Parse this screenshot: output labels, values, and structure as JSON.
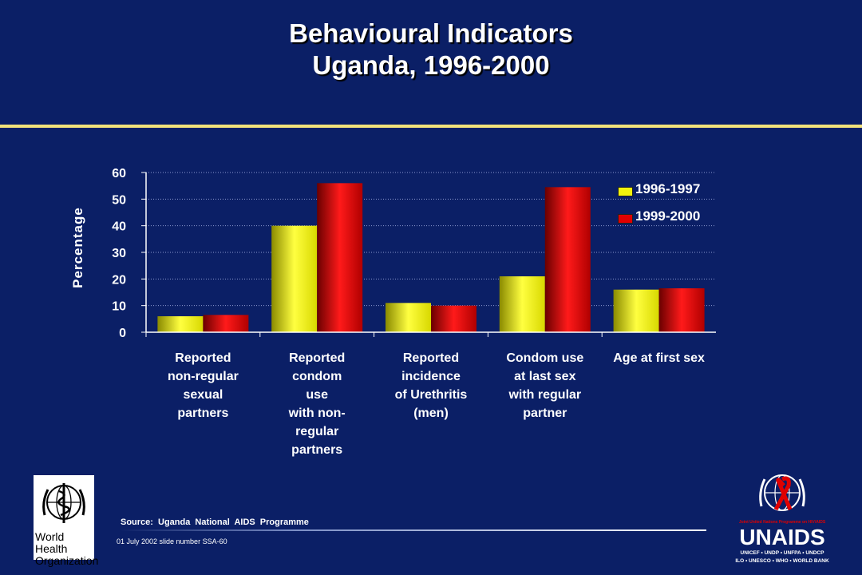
{
  "title_line1": "Behavioural Indicators",
  "title_line2": "Uganda, 1996-2000",
  "chart_data": {
    "type": "bar",
    "categories": [
      "Reported\nnon-regular\nsexual\npartners",
      "Reported\ncondom\nuse\nwith non-\nregular\npartners",
      "Reported\nincidence\nof Urethritis\n(men)",
      "Condom use\nat last sex\nwith regular\npartner",
      "Age at first sex"
    ],
    "series": [
      {
        "name": "1996-1997",
        "values": [
          6,
          40,
          11,
          21,
          16
        ],
        "color": "#f2f20c"
      },
      {
        "name": "1999-2000",
        "values": [
          6.5,
          56,
          10,
          54.5,
          16.5
        ],
        "color": "#e00000"
      }
    ],
    "ylabel": "Percentage",
    "yticks": [
      0,
      10,
      20,
      30,
      40,
      50,
      60
    ],
    "ylim": [
      0,
      60
    ],
    "grid": "dotted horizontal",
    "legend": "top-right"
  },
  "source": "Source:  Uganda National AIDS Programme",
  "footer_date": "01 July 2002 slide number SSA-60",
  "who_logo": {
    "line1": "World Health",
    "line2": "Organization"
  },
  "unaids_logo": {
    "tagline": "Joint United Nations Programme on HIV/AIDS",
    "name": "UNAIDS",
    "partners1": "UNICEF • UNDP • UNFPA • UNDCP",
    "partners2": "ILO • UNESCO • WHO • WORLD BANK"
  }
}
